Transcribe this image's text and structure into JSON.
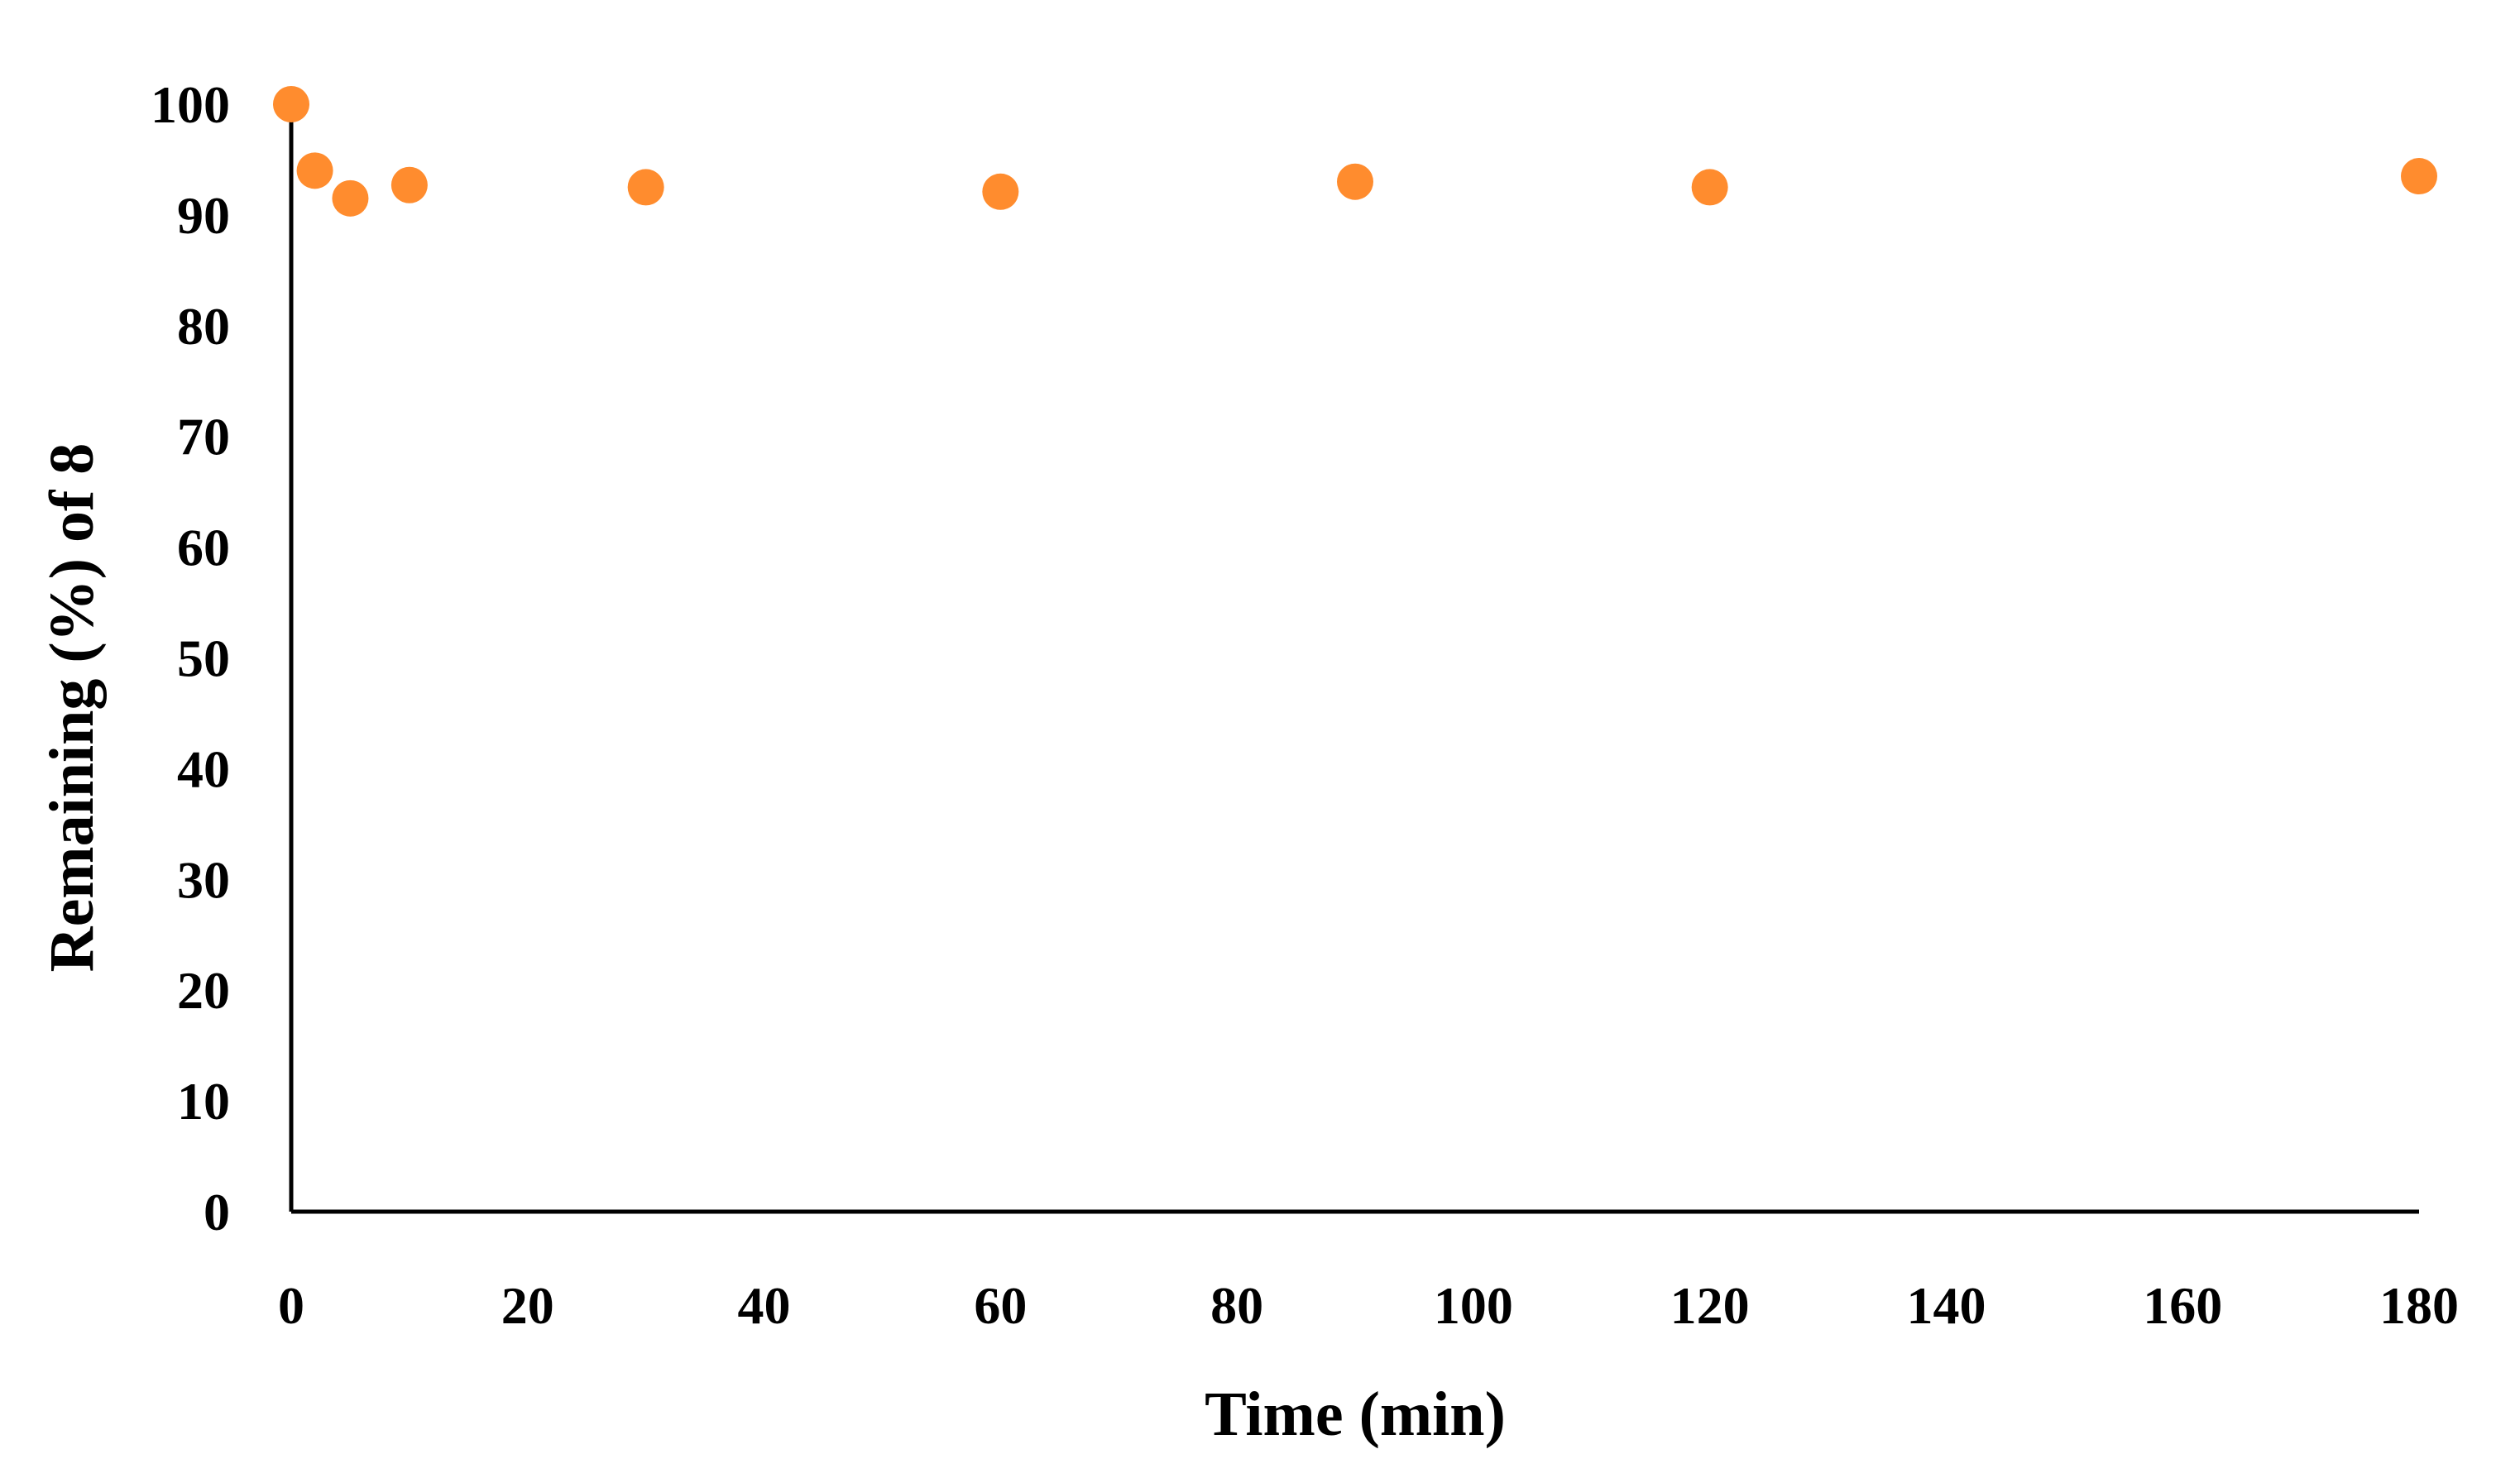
{
  "chart_data": {
    "type": "scatter",
    "title": "",
    "xlabel": "Time (min)",
    "ylabel": "Remaining (%) of 8",
    "xlim": [
      0,
      180
    ],
    "ylim": [
      0,
      100
    ],
    "x_ticks": [
      0,
      20,
      40,
      60,
      80,
      100,
      120,
      140,
      160,
      180
    ],
    "y_ticks": [
      0,
      10,
      20,
      30,
      40,
      50,
      60,
      70,
      80,
      90,
      100
    ],
    "grid": false,
    "legend": "none",
    "marker_color": "#FF8C2E",
    "series": [
      {
        "x": [
          0,
          2,
          5,
          10,
          30,
          60,
          90,
          120,
          180
        ],
        "y": [
          100,
          94,
          91.5,
          92.7,
          92.5,
          92.1,
          93,
          92.5,
          93.5
        ]
      }
    ]
  }
}
